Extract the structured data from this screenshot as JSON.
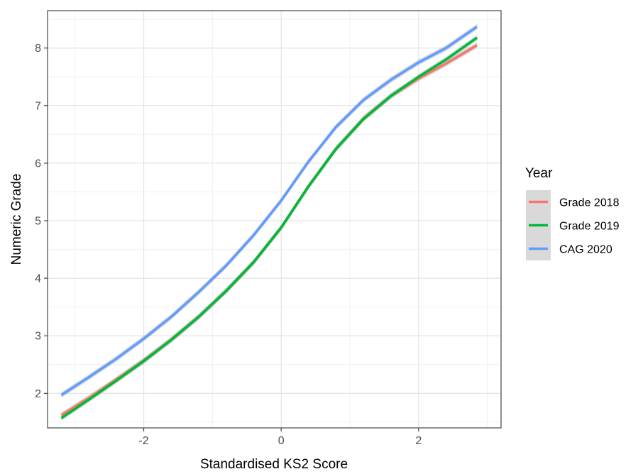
{
  "chart_data": {
    "type": "line",
    "xlabel": "Standardised KS2 Score",
    "ylabel": "Numeric Grade",
    "xlim": [
      -3.4,
      3.2
    ],
    "ylim": [
      1.4,
      8.65
    ],
    "x_ticks": [
      -2,
      0,
      2
    ],
    "x_tick_labels": [
      "-2",
      "0",
      "2"
    ],
    "y_ticks": [
      2,
      3,
      4,
      5,
      6,
      7,
      8
    ],
    "y_tick_labels": [
      "2",
      "3",
      "4",
      "5",
      "6",
      "7",
      "8"
    ],
    "grid": true,
    "legend": {
      "title": "Year",
      "position": "right"
    },
    "x": [
      -3.2,
      -2.8,
      -2.4,
      -2.0,
      -1.6,
      -1.2,
      -0.8,
      -0.4,
      0.0,
      0.4,
      0.8,
      1.2,
      1.6,
      2.0,
      2.4,
      2.85
    ],
    "series": [
      {
        "name": "Grade 2018",
        "color": "#f8766d",
        "values": [
          1.62,
          1.92,
          2.24,
          2.57,
          2.93,
          3.33,
          3.78,
          4.28,
          4.88,
          5.6,
          6.25,
          6.78,
          7.17,
          7.47,
          7.73,
          8.05
        ]
      },
      {
        "name": "Grade 2019",
        "color": "#00ba38",
        "values": [
          1.57,
          1.89,
          2.22,
          2.56,
          2.93,
          3.33,
          3.78,
          4.28,
          4.88,
          5.6,
          6.25,
          6.77,
          7.17,
          7.5,
          7.8,
          8.18
        ]
      },
      {
        "name": "CAG 2020",
        "color": "#619cff",
        "values": [
          1.97,
          2.28,
          2.6,
          2.95,
          3.33,
          3.76,
          4.22,
          4.75,
          5.35,
          6.03,
          6.63,
          7.1,
          7.45,
          7.75,
          8.0,
          8.37
        ]
      }
    ]
  }
}
